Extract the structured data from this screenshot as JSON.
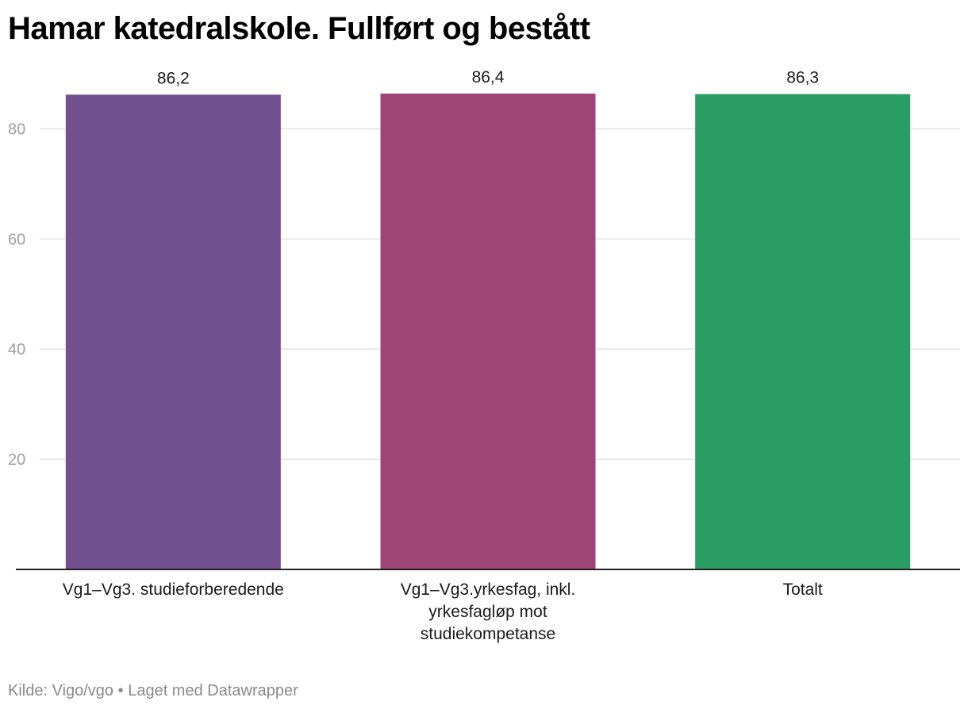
{
  "title": "Hamar katedralskole. Fullført og bestått",
  "footer": {
    "source_label": "Kilde: Vigo/vgo",
    "separator": "•",
    "made_with": "Laget med Datawrapper"
  },
  "chart_data": {
    "type": "bar",
    "title": "Hamar katedralskole. Fullført og bestått",
    "xlabel": "",
    "ylabel": "",
    "categories": [
      [
        "Vg1–Vg3. studieforberedende"
      ],
      [
        "Vg1–Vg3.yrkesfag, inkl.",
        "yrkesfagløp mot",
        "studiekompetanse"
      ],
      [
        "Totalt"
      ]
    ],
    "values": [
      86.2,
      86.4,
      86.3
    ],
    "value_labels": [
      "86,2",
      "86,4",
      "86,3"
    ],
    "colors": [
      "#72508f",
      "#9f4476",
      "#2a9e62"
    ],
    "ylim": [
      0,
      86.4
    ],
    "yticks": [
      20,
      40,
      60,
      80
    ],
    "ytick_labels": [
      "20",
      "40",
      "60",
      "80"
    ],
    "grid": true,
    "legend": "none"
  }
}
